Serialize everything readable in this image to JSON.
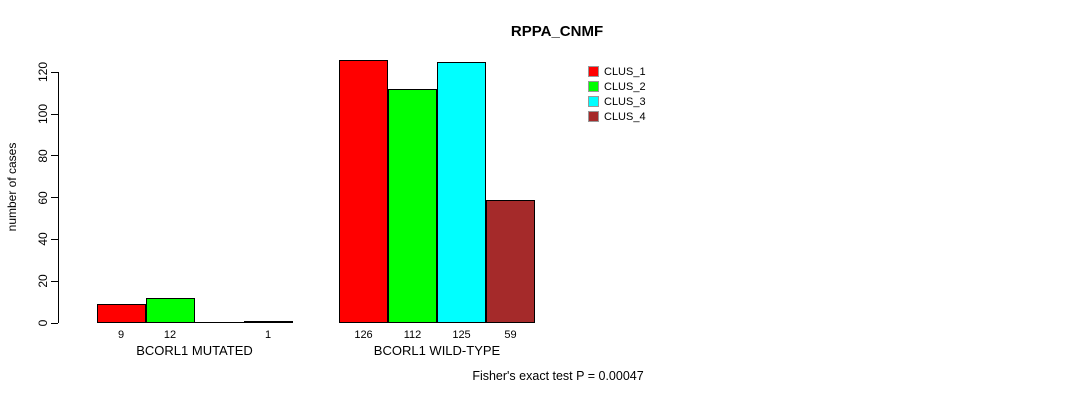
{
  "chart_data": {
    "type": "bar",
    "title": "RPPA_CNMF",
    "ylabel": "number of cases",
    "xlabel": "",
    "ylim": [
      0,
      120
    ],
    "yticks": [
      0,
      20,
      40,
      60,
      80,
      100,
      120
    ],
    "grid": false,
    "legend_position": "top-right",
    "categories": [
      "BCORL1 MUTATED",
      "BCORL1 WILD-TYPE"
    ],
    "series": [
      {
        "name": "CLUS_1",
        "color": "#FF0000",
        "values": [
          9,
          126
        ]
      },
      {
        "name": "CLUS_2",
        "color": "#00FF00",
        "values": [
          12,
          112
        ]
      },
      {
        "name": "CLUS_3",
        "color": "#00FFFF",
        "values": [
          0,
          125
        ]
      },
      {
        "name": "CLUS_4",
        "color": "#A52A2A",
        "values": [
          1,
          59
        ]
      }
    ],
    "bar_value_labels": {
      "BCORL1 MUTATED": [
        "9",
        "12",
        "",
        "1"
      ],
      "BCORL1 WILD-TYPE": [
        "126",
        "112",
        "125",
        "59"
      ]
    },
    "footnote": "Fisher's exact test P = 0.00047",
    "colors": {
      "axis": "#000000",
      "text": "#000000",
      "background": "#FFFFFF"
    }
  }
}
